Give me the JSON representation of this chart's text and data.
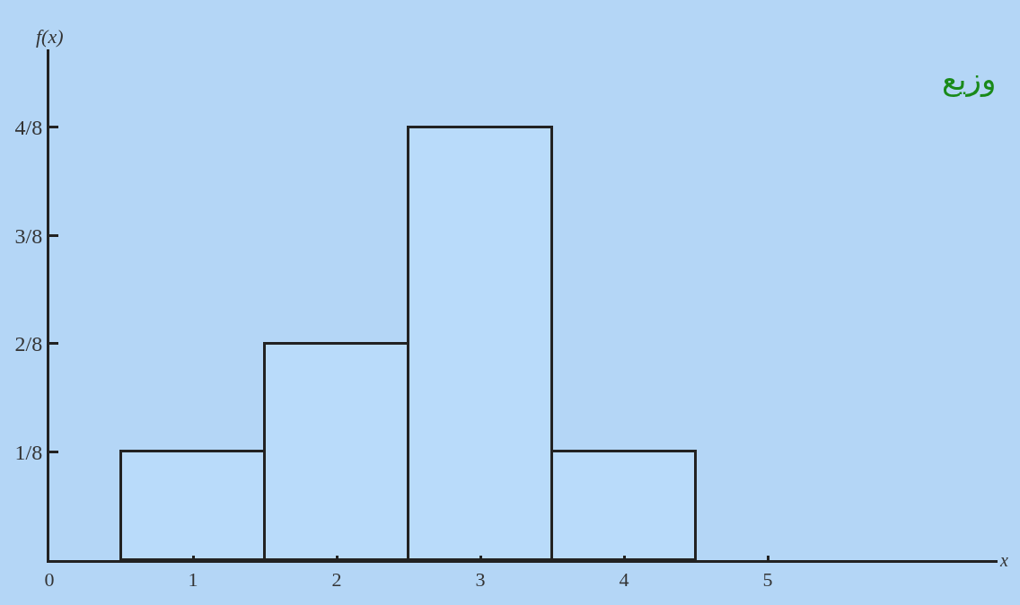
{
  "chart_data": {
    "type": "histogram",
    "title": "وزيع",
    "ylabel": "f(x)",
    "xlabel": "x",
    "bins": [
      0.5,
      1.5,
      2.5,
      3.5,
      4.5
    ],
    "values": [
      0.125,
      0.25,
      0.5,
      0.125
    ],
    "color": "#b9dbfa",
    "xlim": [
      0,
      6.6
    ],
    "ylim": [
      0,
      0.59
    ],
    "xticks": [
      0,
      1,
      2,
      3,
      4,
      5
    ],
    "yticks": [
      {
        "value": 0.125,
        "label": "1/8"
      },
      {
        "value": 0.25,
        "label": "2/8"
      },
      {
        "value": 0.375,
        "label": "3/8"
      },
      {
        "value": 0.5,
        "label": "4/8"
      }
    ],
    "grid": false
  }
}
